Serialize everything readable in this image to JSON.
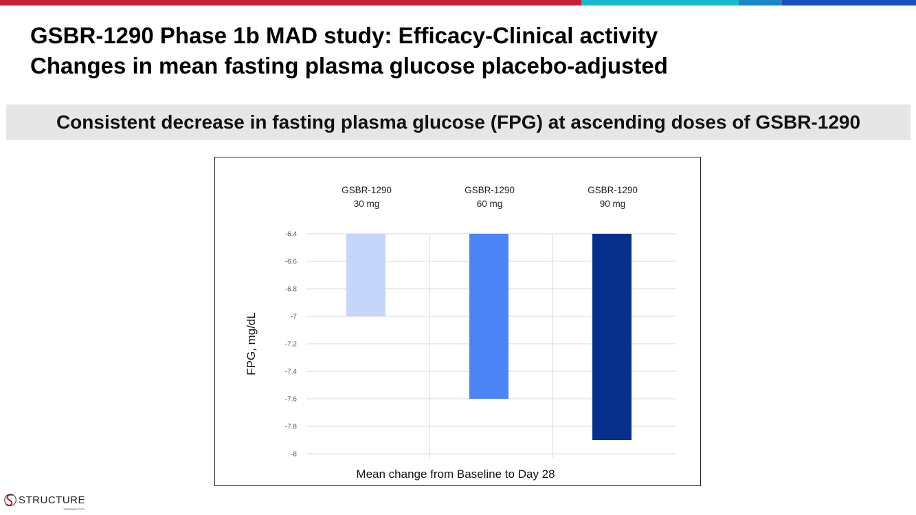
{
  "header": {
    "title_line1": "GSBR-1290 Phase 1b MAD study: Efficacy-Clinical activity",
    "title_line2": "Changes in mean fasting plasma glucose placebo-adjusted"
  },
  "banner": {
    "text": "Consistent decrease in fasting plasma glucose (FPG) at ascending doses of GSBR-1290"
  },
  "colors": {
    "top_bar": [
      "#c8203a",
      "#1bb8c9",
      "#1a86c8",
      "#1a4fbf"
    ],
    "bar_30": "#c6d5fb",
    "bar_60": "#4b85f5",
    "bar_90": "#07308c"
  },
  "chart_data": {
    "type": "bar",
    "categories": [
      "GSBR-1290\n30 mg",
      "GSBR-1290\n60 mg",
      "GSBR-1290\n90 mg"
    ],
    "values": [
      -7.0,
      -7.6,
      -7.9
    ],
    "ylabel": "FPG, mg/dL",
    "xlabel": "Mean change from Baseline to Day 28",
    "ylim": [
      -8,
      -6.4
    ],
    "yticks": [
      "-6.4",
      "-6.6",
      "-6.8",
      "-7",
      "-7.2",
      "-7.4",
      "-7.6",
      "-7.8",
      "-8"
    ],
    "grid": true
  },
  "footer": {
    "logo_text": "STRUCTURE",
    "logo_subtext": "THERAPEUTICS"
  }
}
